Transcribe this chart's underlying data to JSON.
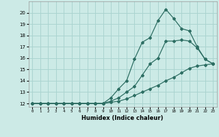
{
  "xlabel": "Humidex (Indice chaleur)",
  "bg_color": "#cceae6",
  "grid_color": "#aad4d0",
  "line_color": "#2d6e63",
  "xlim": [
    -0.5,
    23.5
  ],
  "ylim": [
    11.7,
    21.0
  ],
  "yticks": [
    12,
    13,
    14,
    15,
    16,
    17,
    18,
    19,
    20
  ],
  "xticks": [
    0,
    1,
    2,
    3,
    4,
    5,
    6,
    7,
    8,
    9,
    10,
    11,
    12,
    13,
    14,
    15,
    16,
    17,
    18,
    19,
    20,
    21,
    22,
    23
  ],
  "line1_x": [
    0,
    1,
    2,
    3,
    4,
    5,
    6,
    7,
    8,
    9,
    10,
    11,
    12,
    13,
    14,
    15,
    16,
    17,
    18,
    19,
    20,
    21,
    22,
    23
  ],
  "line1_y": [
    12,
    12,
    12,
    12,
    12,
    12,
    12,
    12,
    12,
    12,
    12.1,
    12.2,
    12.4,
    12.7,
    13.0,
    13.3,
    13.6,
    14.0,
    14.3,
    14.7,
    15.1,
    15.3,
    15.4,
    15.5
  ],
  "line2_x": [
    0,
    1,
    2,
    3,
    4,
    5,
    6,
    7,
    8,
    9,
    10,
    11,
    12,
    13,
    14,
    15,
    16,
    17,
    18,
    19,
    20,
    21,
    22,
    23
  ],
  "line2_y": [
    12,
    12,
    12,
    12,
    12,
    12,
    12,
    12,
    12,
    12,
    12.2,
    12.5,
    13.0,
    13.5,
    14.5,
    15.5,
    16.0,
    17.5,
    17.5,
    17.6,
    17.5,
    16.9,
    15.9,
    15.5
  ],
  "line3_x": [
    0,
    1,
    2,
    3,
    4,
    5,
    6,
    7,
    8,
    9,
    10,
    11,
    12,
    13,
    14,
    15,
    16,
    17,
    18,
    19,
    20,
    21,
    22,
    23
  ],
  "line3_y": [
    12,
    12,
    12,
    12,
    12,
    12,
    12,
    12,
    12,
    12,
    12.5,
    13.3,
    14.0,
    15.9,
    17.4,
    17.8,
    19.3,
    20.3,
    19.5,
    18.6,
    18.4,
    17.0,
    15.9,
    15.5
  ]
}
